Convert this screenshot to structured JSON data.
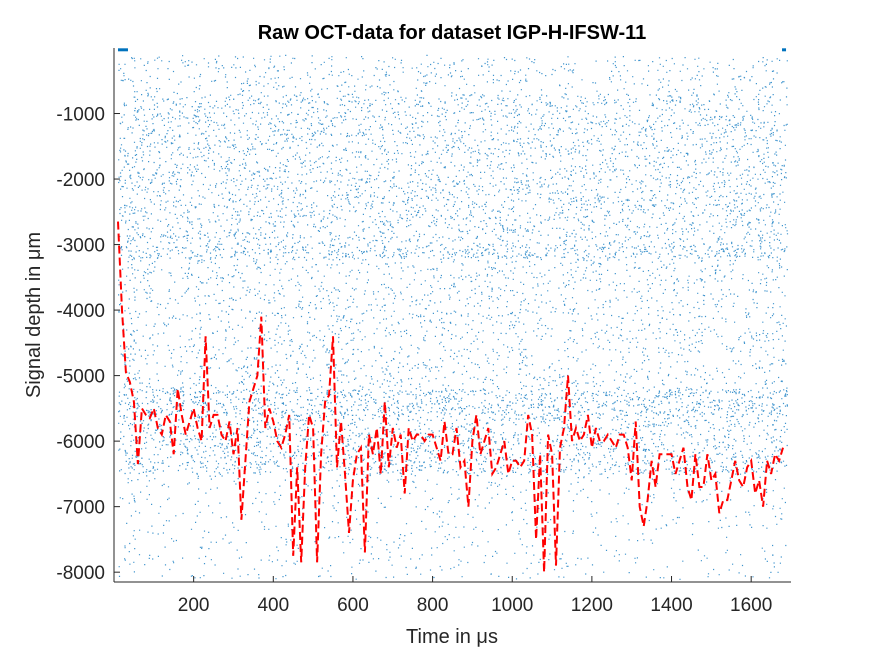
{
  "chart_data": {
    "type": "scatter",
    "title": "Raw OCT-data for dataset IGP-H-IFSW-11",
    "xlabel": "Time in μs",
    "ylabel": "Signal depth in μm",
    "xlim": [
      0,
      1700
    ],
    "ylim": [
      -8150,
      0
    ],
    "xticks": [
      200,
      400,
      600,
      800,
      1000,
      1200,
      1400,
      1600
    ],
    "xtick_labels": [
      "200",
      "400",
      "600",
      "800",
      "1000",
      "1200",
      "1400",
      "1600"
    ],
    "yticks": [
      -1000,
      -2000,
      -3000,
      -4000,
      -5000,
      -6000,
      -7000,
      -8000
    ],
    "ytick_labels": [
      "-1000",
      "-2000",
      "-3000",
      "-4000",
      "-5000",
      "-6000",
      "-7000",
      "-8000"
    ],
    "grid": false,
    "legend": "none",
    "series": [
      {
        "style": "scatter points",
        "color": "#0072BD",
        "description_values": "dense raw signal cloud, densest between -1000 and -3000 and near -5500 to -6500"
      },
      {
        "style": "dashed line",
        "color": "#FF0000",
        "x": [
          10,
          20,
          30,
          40,
          50,
          60,
          70,
          80,
          90,
          100,
          110,
          120,
          130,
          140,
          150,
          160,
          170,
          180,
          190,
          200,
          210,
          220,
          230,
          240,
          250,
          260,
          270,
          280,
          290,
          300,
          310,
          320,
          330,
          340,
          350,
          360,
          370,
          380,
          390,
          400,
          410,
          420,
          430,
          440,
          450,
          460,
          470,
          480,
          490,
          500,
          510,
          520,
          530,
          540,
          550,
          560,
          570,
          580,
          590,
          600,
          610,
          620,
          630,
          640,
          650,
          660,
          670,
          680,
          690,
          700,
          710,
          720,
          730,
          740,
          750,
          760,
          770,
          780,
          790,
          800,
          810,
          820,
          830,
          840,
          850,
          860,
          870,
          880,
          890,
          900,
          910,
          920,
          930,
          940,
          950,
          960,
          970,
          980,
          990,
          1000,
          1010,
          1020,
          1030,
          1040,
          1050,
          1060,
          1070,
          1080,
          1090,
          1100,
          1110,
          1120,
          1130,
          1140,
          1150,
          1160,
          1170,
          1180,
          1190,
          1200,
          1210,
          1220,
          1230,
          1240,
          1250,
          1260,
          1270,
          1280,
          1290,
          1300,
          1310,
          1320,
          1330,
          1340,
          1350,
          1360,
          1370,
          1380,
          1390,
          1400,
          1410,
          1420,
          1430,
          1440,
          1450,
          1460,
          1470,
          1480,
          1490,
          1500,
          1510,
          1520,
          1530,
          1540,
          1550,
          1560,
          1570,
          1580,
          1590,
          1600,
          1610,
          1620,
          1630,
          1640,
          1650,
          1660,
          1670,
          1680
        ],
        "y": [
          -2650,
          -4000,
          -4950,
          -5100,
          -5400,
          -6350,
          -5500,
          -5600,
          -5650,
          -5500,
          -5800,
          -5900,
          -5600,
          -5700,
          -6200,
          -5200,
          -5600,
          -5900,
          -5700,
          -5500,
          -5800,
          -6000,
          -4400,
          -5800,
          -5600,
          -5600,
          -5900,
          -6000,
          -5700,
          -6200,
          -5800,
          -7200,
          -6300,
          -5400,
          -5200,
          -5000,
          -4100,
          -5800,
          -5500,
          -5700,
          -6000,
          -6100,
          -5900,
          -5600,
          -7750,
          -6400,
          -7850,
          -6400,
          -5600,
          -5800,
          -7850,
          -6200,
          -5400,
          -5300,
          -4400,
          -6400,
          -5700,
          -6500,
          -7400,
          -6600,
          -6200,
          -6100,
          -7700,
          -5900,
          -6200,
          -5800,
          -6500,
          -5400,
          -6400,
          -5800,
          -6100,
          -5900,
          -6800,
          -5800,
          -6000,
          -5900,
          -5900,
          -6000,
          -5900,
          -5900,
          -6100,
          -6300,
          -5700,
          -6200,
          -6200,
          -5800,
          -6400,
          -6300,
          -7000,
          -6000,
          -5600,
          -6200,
          -6000,
          -5800,
          -6500,
          -6400,
          -6200,
          -6000,
          -6500,
          -6300,
          -6300,
          -6400,
          -6300,
          -5600,
          -5900,
          -7500,
          -6200,
          -8000,
          -5900,
          -6200,
          -7900,
          -6100,
          -5800,
          -5000,
          -6000,
          -5800,
          -6000,
          -5900,
          -5600,
          -6100,
          -5800,
          -6000,
          -6000,
          -5900,
          -6000,
          -6100,
          -5900,
          -5900,
          -6100,
          -6600,
          -5700,
          -7000,
          -7300,
          -6900,
          -6300,
          -6700,
          -6200,
          -6200,
          -6200,
          -6200,
          -6500,
          -6300,
          -6100,
          -6700,
          -6900,
          -6200,
          -6700,
          -6700,
          -6200,
          -6600,
          -6500,
          -7100,
          -6900,
          -6900,
          -6600,
          -6300,
          -6600,
          -6700,
          -6400,
          -6300,
          -6800,
          -6600,
          -7000,
          -6300,
          -6500,
          -6200,
          -6300,
          -6100
        ]
      }
    ]
  }
}
